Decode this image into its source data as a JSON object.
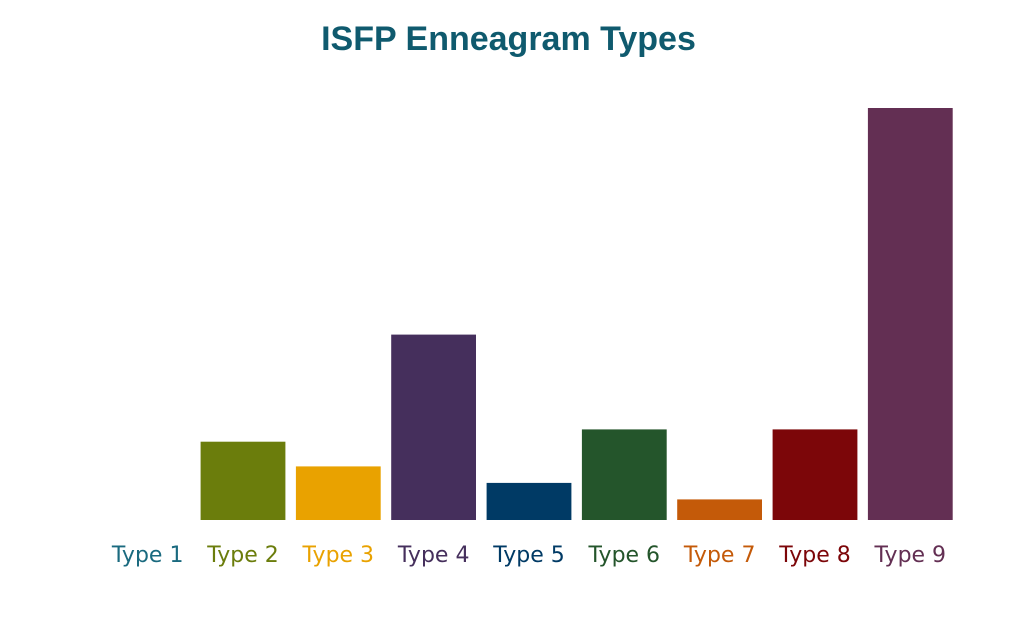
{
  "chart_data": {
    "type": "bar",
    "title": "ISFP Enneagram Types",
    "xlabel": "",
    "ylabel": "",
    "categories": [
      "Type 1",
      "Type 2",
      "Type 3",
      "Type 4",
      "Type 5",
      "Type 6",
      "Type 7",
      "Type 8",
      "Type 9"
    ],
    "values": [
      0,
      19,
      13,
      45,
      9,
      22,
      5,
      22,
      100
    ],
    "ylim": [
      0,
      100
    ],
    "grid": false,
    "legend": "none",
    "colors": [
      "#1a6a7f",
      "#6b7d0c",
      "#e9a200",
      "#452f5c",
      "#003a65",
      "#24552b",
      "#c45a09",
      "#7c0609",
      "#632f53"
    ]
  }
}
